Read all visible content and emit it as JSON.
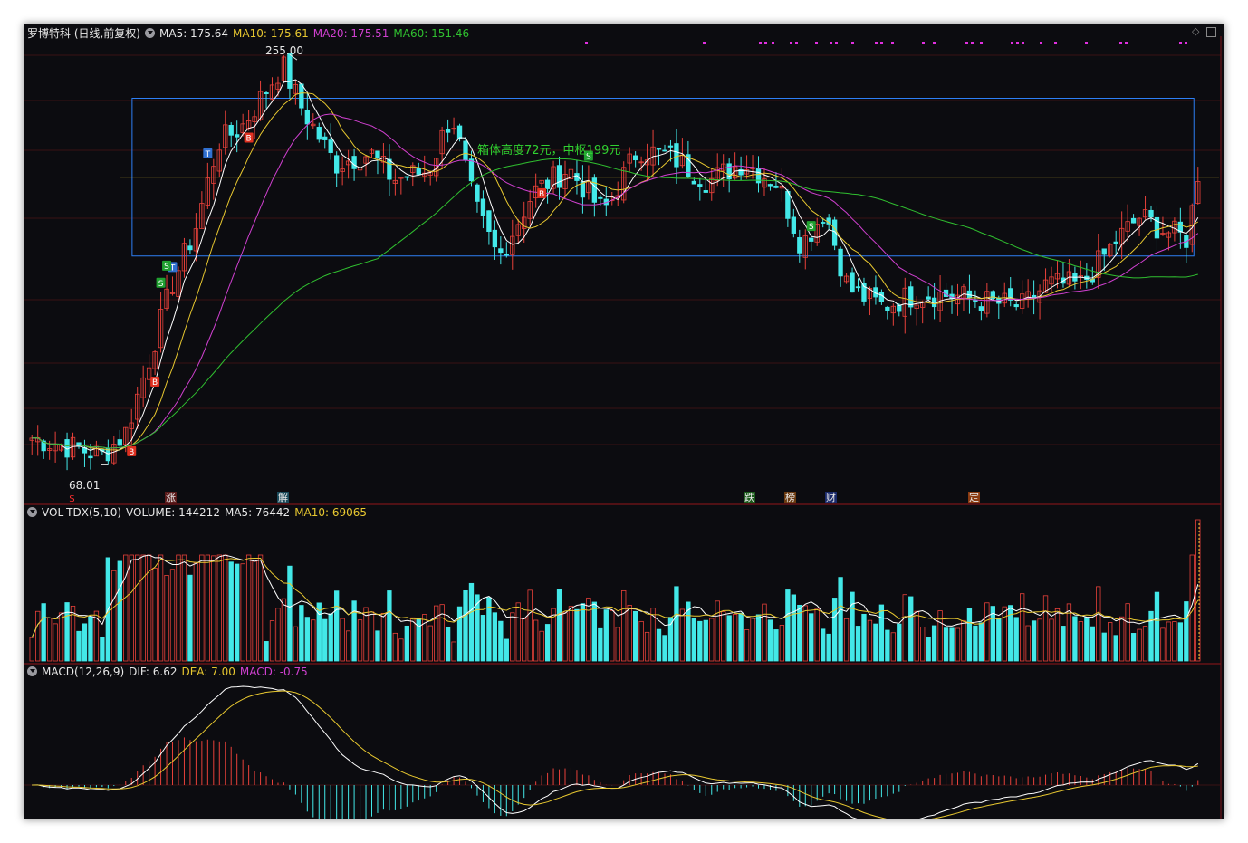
{
  "header": {
    "title": "罗博特科 (日线,前复权)",
    "ma5": "MA5: 175.64",
    "ma10": "MA10: 175.61",
    "ma20": "MA20: 175.51",
    "ma60": "MA60: 151.46"
  },
  "volume": {
    "title": "VOL-TDX(5,10)",
    "volume": "VOLUME: 144212",
    "ma5": "MA5: 76442",
    "ma10": "MA10: 69065"
  },
  "macd": {
    "title": "MACD(12,26,9)",
    "dif": "DIF: 6.62",
    "dea": "DEA: 7.00",
    "macd": "MACD: -0.75"
  },
  "annotations": {
    "high": "255.00",
    "low": "68.01",
    "box_text": "箱体高度72元，中枢199元"
  },
  "events": [
    "$",
    "涨",
    "解",
    "跌",
    "榜",
    "财",
    "定"
  ],
  "signals": [
    "B",
    "S",
    "T",
    "B",
    "S",
    "T",
    "B",
    "S",
    "B",
    "S"
  ],
  "colors": {
    "background": "#0c0c10",
    "up": "#e8413a",
    "down": "#43e8e8",
    "ma5": "#ffffff",
    "ma10": "#e8c830",
    "ma20": "#d040d0",
    "ma60": "#30c030",
    "box": "#2e7ff5",
    "pivot_line": "#e8c830",
    "signal_buy": "#e03020",
    "signal_sell": "#20a030",
    "signal_t": "#3070d0"
  },
  "chart_data": {
    "type": "candlestick",
    "title": "罗博特科 (日线,前复权)",
    "price_range": [
      60,
      260
    ],
    "high": 255.0,
    "low": 68.01,
    "box": {
      "top": 235,
      "bottom": 163,
      "height": 72,
      "pivot": 199
    },
    "close_path": [
      [
        0,
        80
      ],
      [
        0.04,
        75
      ],
      [
        0.06,
        72
      ],
      [
        0.08,
        82
      ],
      [
        0.1,
        115
      ],
      [
        0.12,
        150
      ],
      [
        0.14,
        175
      ],
      [
        0.16,
        215
      ],
      [
        0.18,
        222
      ],
      [
        0.2,
        238
      ],
      [
        0.215,
        250
      ],
      [
        0.23,
        232
      ],
      [
        0.26,
        205
      ],
      [
        0.29,
        210
      ],
      [
        0.31,
        198
      ],
      [
        0.34,
        202
      ],
      [
        0.36,
        228
      ],
      [
        0.38,
        185
      ],
      [
        0.4,
        162
      ],
      [
        0.43,
        192
      ],
      [
        0.46,
        203
      ],
      [
        0.49,
        183
      ],
      [
        0.52,
        212
      ],
      [
        0.55,
        208
      ],
      [
        0.58,
        197
      ],
      [
        0.61,
        206
      ],
      [
        0.64,
        196
      ],
      [
        0.66,
        168
      ],
      [
        0.68,
        184
      ],
      [
        0.7,
        148
      ],
      [
        0.73,
        140
      ],
      [
        0.76,
        146
      ],
      [
        0.79,
        145
      ],
      [
        0.82,
        142
      ],
      [
        0.85,
        140
      ],
      [
        0.87,
        150
      ],
      [
        0.9,
        150
      ],
      [
        0.93,
        170
      ],
      [
        0.95,
        181
      ],
      [
        0.97,
        175
      ],
      [
        0.99,
        171
      ],
      [
        1,
        197
      ]
    ],
    "series": [
      {
        "name": "MA5",
        "value": 175.64
      },
      {
        "name": "MA10",
        "value": 175.61
      },
      {
        "name": "MA20",
        "value": 175.51
      },
      {
        "name": "MA60",
        "value": 151.46
      }
    ],
    "volume": {
      "latest": 144212,
      "ma5": 76442,
      "ma10": 69065
    },
    "macd": {
      "dif": 6.62,
      "dea": 7.0,
      "macd": -0.75
    }
  }
}
